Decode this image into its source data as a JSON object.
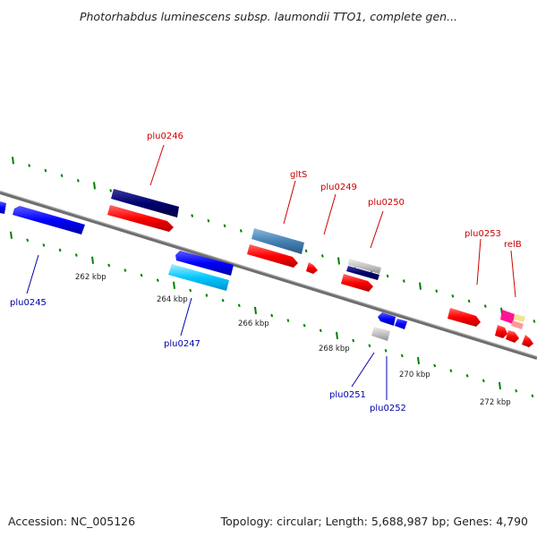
{
  "title": "Photorhabdus luminescens subsp. laumondii TTO1, complete gen...",
  "accession_text": "Accession: NC_005126",
  "topology_text": "Topology: circular; Length: 5,688,987 bp; Genes: 4,790",
  "scale_labels": [
    "262 kbp",
    "264 kbp",
    "266 kbp",
    "268 kbp",
    "270 kbp",
    "272 kbp"
  ],
  "gene_labels_forward": [
    "plu0246",
    "gltS",
    "plu0249",
    "plu0250",
    "plu0253",
    "relB"
  ],
  "gene_labels_reverse": [
    "plu0245",
    "plu0247",
    "plu0251",
    "plu0252"
  ],
  "colors": {
    "forward_gene": "#ff0000",
    "reverse_gene": "#0000ff",
    "axis": "#808080",
    "tick": "#008000",
    "dark_navy": "#000066",
    "steel_blue": "#4682b4",
    "cyan": "#00bfff",
    "grey": "#c0c0c0",
    "magenta": "#ff1493",
    "pink": "#ff9999",
    "khaki": "#f0e68c"
  }
}
